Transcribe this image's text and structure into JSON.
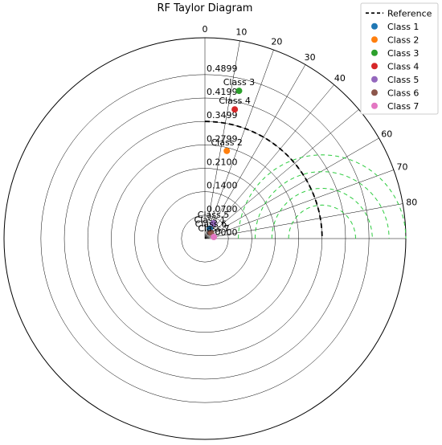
{
  "chart_data": {
    "type": "taylor",
    "title": "RF Taylor Diagram",
    "angle_ticks": [
      "0",
      "10",
      "20",
      "30",
      "40",
      "50",
      "60",
      "70",
      "80"
    ],
    "radial_ticks": [
      "0.0000",
      "0.0700",
      "0.1400",
      "0.2100",
      "0.2799",
      "0.3499",
      "0.4199",
      "0.4899"
    ],
    "rmax": 0.6,
    "reference": {
      "name": "Reference",
      "std": 0.3499
    },
    "points": [
      {
        "name": "Class 1",
        "color": "#1f77b4",
        "angle_deg": 27,
        "r": 0.033
      },
      {
        "name": "Class 2",
        "color": "#ff7f0e",
        "angle_deg": 14,
        "r": 0.27
      },
      {
        "name": "Class 3",
        "color": "#2ca02c",
        "angle_deg": 13,
        "r": 0.453
      },
      {
        "name": "Class 4",
        "color": "#d62728",
        "angle_deg": 13,
        "r": 0.396
      },
      {
        "name": "Class 5",
        "color": "#9467bd",
        "angle_deg": 29,
        "r": 0.052
      },
      {
        "name": "Class 6",
        "color": "#8c564b",
        "angle_deg": 45,
        "r": 0.025
      },
      {
        "name": "Class 7",
        "color": "#e377c2",
        "angle_deg": 80,
        "r": 0.027
      }
    ],
    "rms_contours": [
      0.1,
      0.15,
      0.2,
      0.25
    ],
    "legend_position": "top-right"
  }
}
